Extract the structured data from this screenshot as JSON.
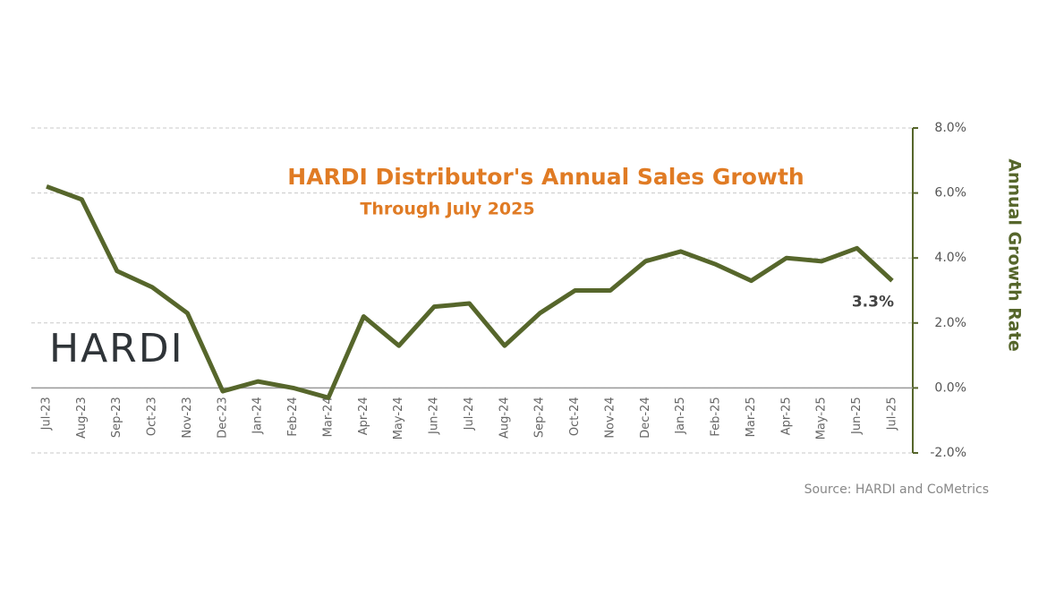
{
  "chart_data": {
    "type": "line",
    "title": "HARDI Distributor's Annual Sales Growth",
    "subtitle": "Through July 2025",
    "y_axis_label": "Annual Growth Rate",
    "source": "Source: HARDI and CoMetrics",
    "logo": "HARDI",
    "categories": [
      "Jul-23",
      "Aug-23",
      "Sep-23",
      "Oct-23",
      "Nov-23",
      "Dec-23",
      "Jan-24",
      "Feb-24",
      "Mar-24",
      "Apr-24",
      "May-24",
      "Jun-24",
      "Jul-24",
      "Aug-24",
      "Sep-24",
      "Oct-24",
      "Nov-24",
      "Dec-24",
      "Jan-25",
      "Feb-25",
      "Mar-25",
      "Apr-25",
      "May-25",
      "Jun-25",
      "Jul-25"
    ],
    "values": [
      6.2,
      5.8,
      3.6,
      3.1,
      2.3,
      -0.1,
      0.2,
      0.0,
      -0.3,
      2.2,
      1.3,
      2.5,
      2.6,
      1.3,
      2.3,
      3.0,
      3.0,
      3.9,
      4.2,
      3.8,
      3.3,
      4.0,
      3.9,
      4.3,
      3.3
    ],
    "value_labels": [
      null,
      null,
      null,
      null,
      null,
      null,
      null,
      null,
      null,
      null,
      null,
      null,
      null,
      null,
      null,
      null,
      null,
      null,
      null,
      null,
      null,
      null,
      null,
      null,
      "3.3%"
    ],
    "color": "#56662b",
    "ylim": [
      -2,
      8
    ],
    "yticks": [
      {
        "value": -2,
        "label": "-2.0%"
      },
      {
        "value": 0,
        "label": "0.0%"
      },
      {
        "value": 2,
        "label": "2.0%"
      },
      {
        "value": 4,
        "label": "4.0%"
      },
      {
        "value": 6,
        "label": "6.0%"
      },
      {
        "value": 8,
        "label": "8.0%"
      }
    ],
    "grid": true
  }
}
